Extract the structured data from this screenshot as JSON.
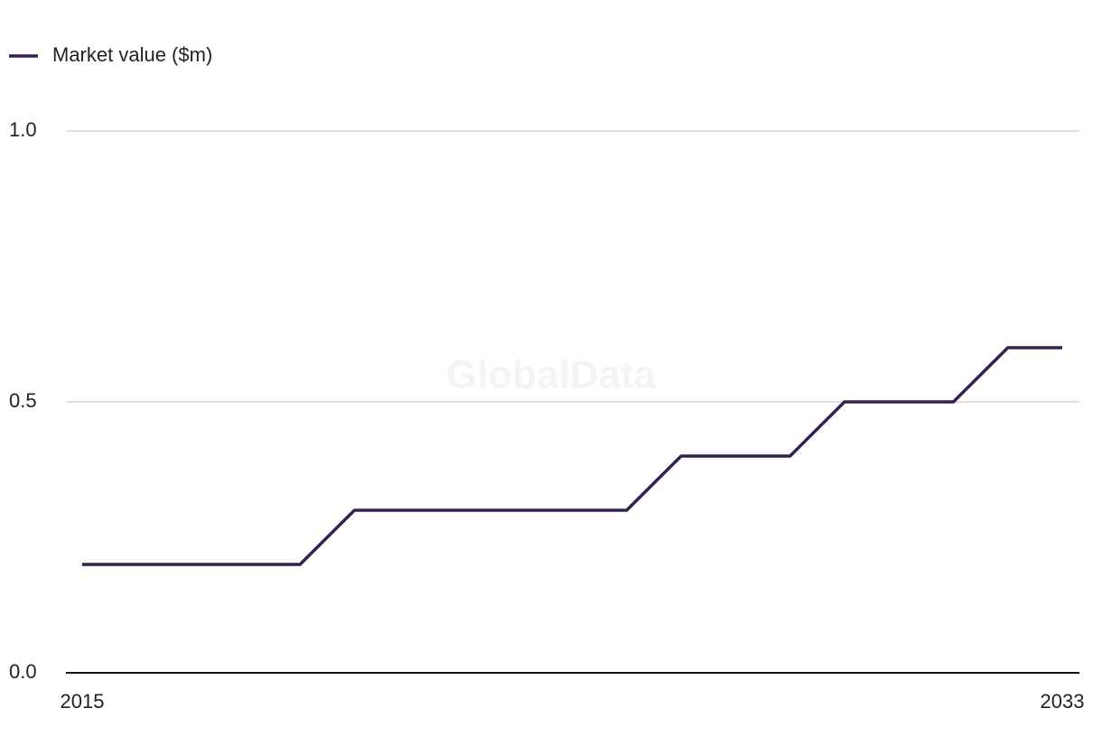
{
  "chart_data": {
    "type": "line",
    "watermark": "GlobalData",
    "x": [
      2015,
      2016,
      2017,
      2018,
      2019,
      2020,
      2021,
      2022,
      2023,
      2024,
      2025,
      2026,
      2027,
      2028,
      2029,
      2030,
      2031,
      2032,
      2033
    ],
    "series": [
      {
        "name": "Market value ($m)",
        "color": "#35204f",
        "values": [
          0.2,
          0.2,
          0.2,
          0.2,
          0.2,
          0.3,
          0.3,
          0.3,
          0.3,
          0.3,
          0.3,
          0.4,
          0.4,
          0.4,
          0.5,
          0.5,
          0.5,
          0.6,
          0.6
        ]
      }
    ],
    "xlim": [
      2015,
      2033
    ],
    "xticks": [
      2015,
      2033
    ],
    "ylim": [
      0,
      1
    ],
    "yticks": [
      {
        "value": 0,
        "label": "0.0"
      },
      0.5,
      {
        "value": 1,
        "label": "1.0"
      }
    ],
    "grid": true,
    "legend": "top-left"
  }
}
